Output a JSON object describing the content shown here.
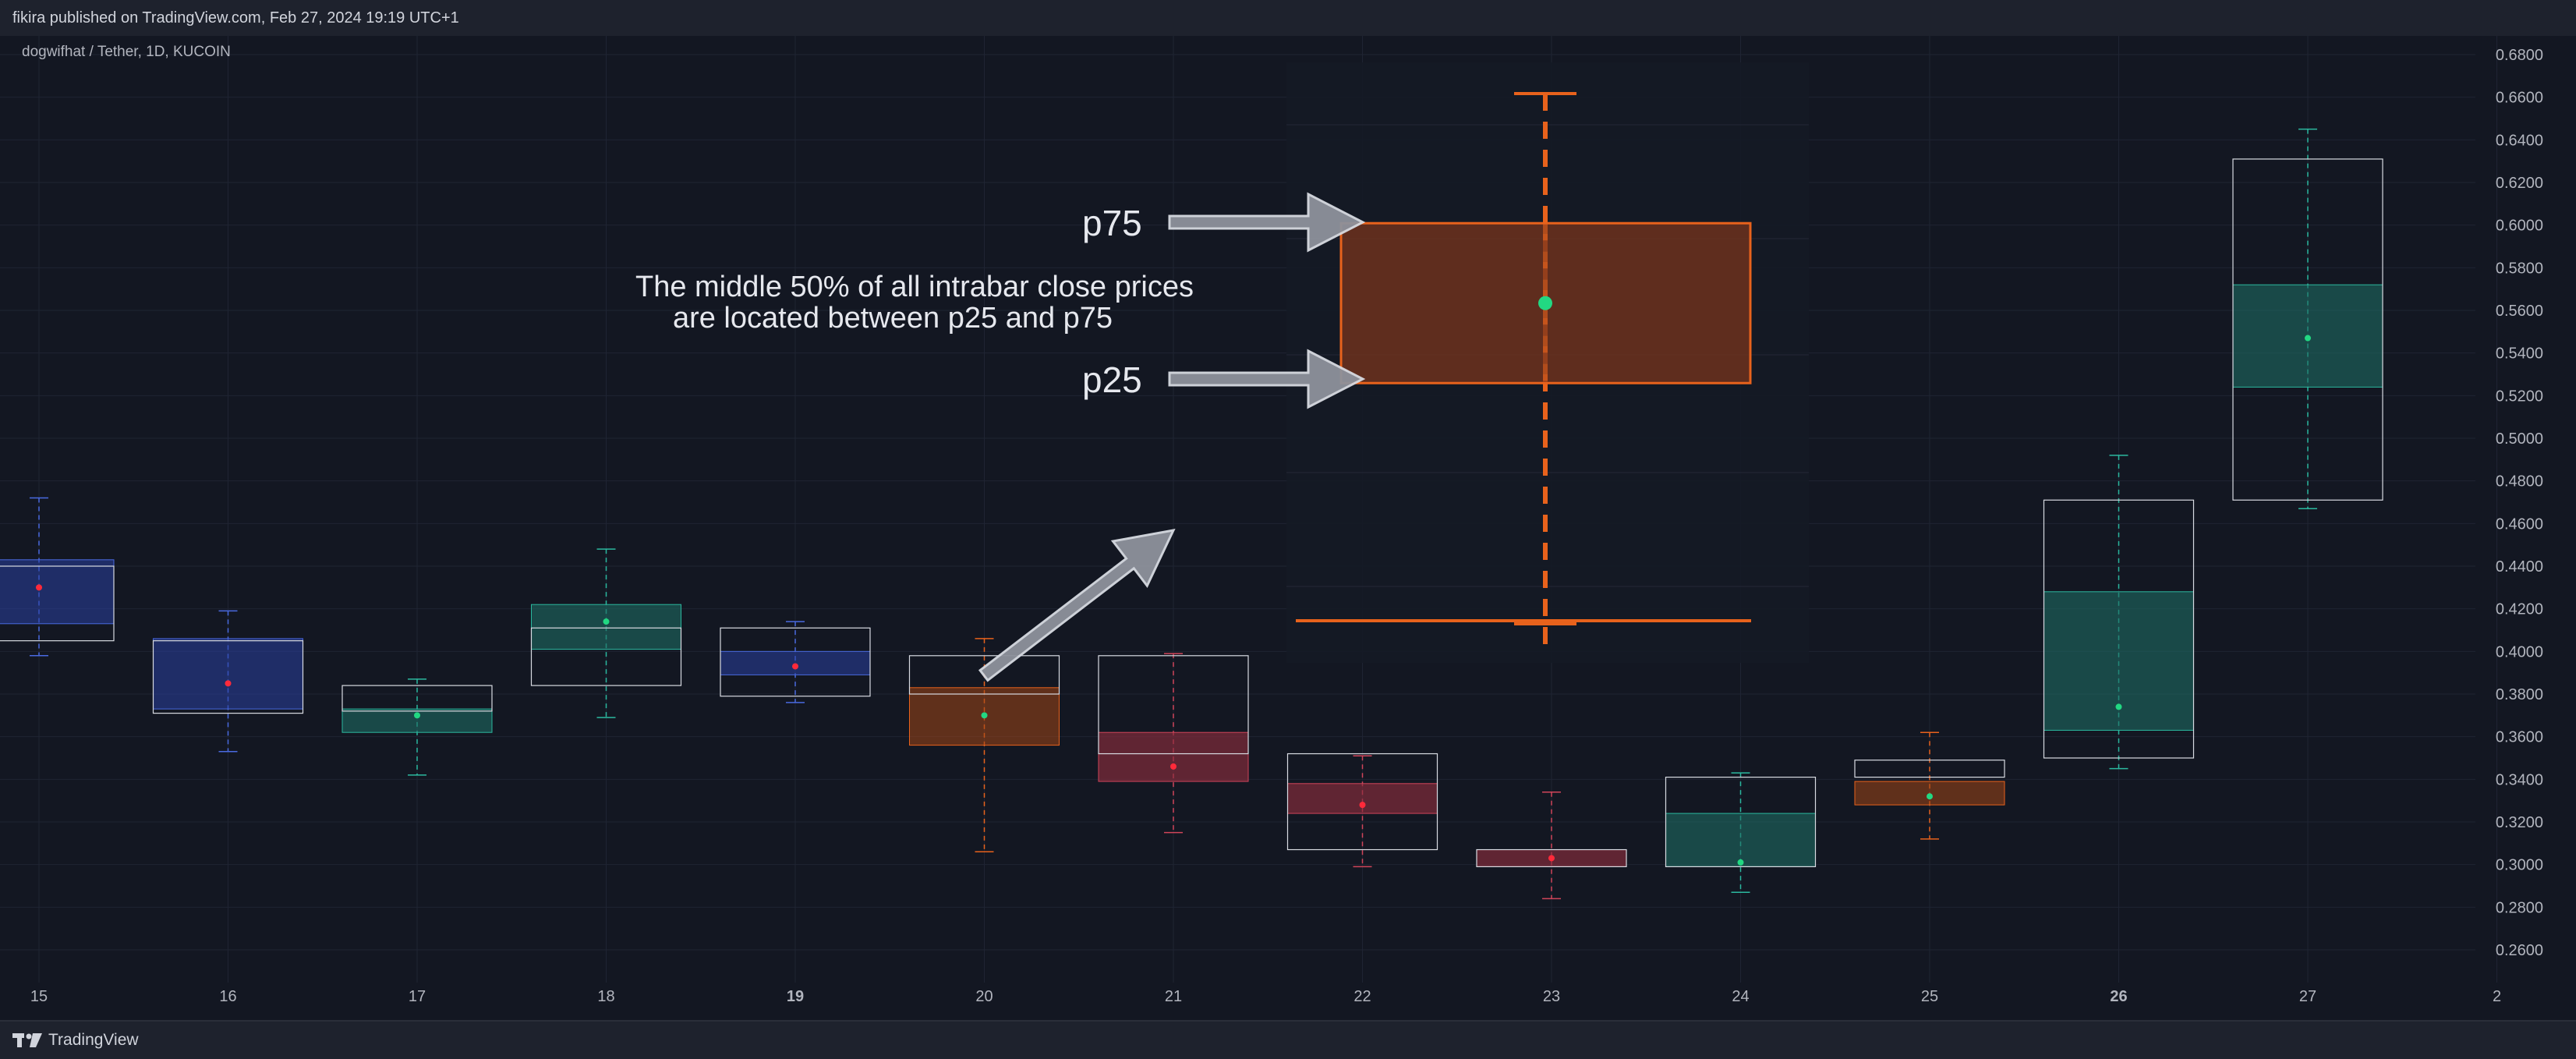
{
  "header": {
    "published": "fikira published on TradingView.com, Feb 27, 2024 19:19 UTC+1"
  },
  "footer": {
    "brand": "TradingView"
  },
  "colors": {
    "background": "#131722",
    "grid": "#1f2433",
    "blue": "#2a3fa0",
    "teal": "#1e6b63",
    "orange": "#e8621c",
    "red": "#8a2d3e",
    "white": "#d8dbe2",
    "green_dot": "#22d882",
    "red_dot": "#ff2a3a"
  },
  "chart_data": {
    "type": "box",
    "symbol": "dogwifhat / Tether, 1D, KUCOIN",
    "x_ticks": [
      "15",
      "16",
      "17",
      "18",
      "19",
      "20",
      "21",
      "22",
      "23",
      "24",
      "25",
      "26",
      "27",
      "2"
    ],
    "x_ticks_bold": [
      "19",
      "26"
    ],
    "y_ticks": [
      "0.6800",
      "0.6600",
      "0.6400",
      "0.6200",
      "0.6000",
      "0.5800",
      "0.5600",
      "0.5400",
      "0.5200",
      "0.5000",
      "0.4800",
      "0.4600",
      "0.4400",
      "0.4200",
      "0.4000",
      "0.3800",
      "0.3600",
      "0.3400",
      "0.3200",
      "0.3000",
      "0.2800",
      "0.2600"
    ],
    "y_range": [
      0.25,
      0.685
    ],
    "bars": [
      {
        "day": "15",
        "open": 0.405,
        "close": 0.44,
        "p25": 0.413,
        "p75": 0.443,
        "wick_low": 0.398,
        "wick_high": 0.472,
        "median": 0.43,
        "whisker": "blue",
        "fill": "blue",
        "dot": "red"
      },
      {
        "day": "16",
        "open": 0.371,
        "close": 0.405,
        "p25": 0.373,
        "p75": 0.406,
        "wick_low": 0.353,
        "wick_high": 0.419,
        "median": 0.385,
        "whisker": "blue",
        "fill": "blue",
        "dot": "red"
      },
      {
        "day": "17",
        "open": 0.372,
        "close": 0.384,
        "p25": 0.362,
        "p75": 0.373,
        "wick_low": 0.342,
        "wick_high": 0.387,
        "median": 0.37,
        "whisker": "teal",
        "fill": "teal",
        "dot": "green"
      },
      {
        "day": "18",
        "open": 0.384,
        "close": 0.411,
        "p25": 0.401,
        "p75": 0.422,
        "wick_low": 0.369,
        "wick_high": 0.448,
        "median": 0.414,
        "whisker": "teal",
        "fill": "teal",
        "dot": "green"
      },
      {
        "day": "19",
        "open": 0.379,
        "close": 0.411,
        "p25": 0.389,
        "p75": 0.4,
        "wick_low": 0.376,
        "wick_high": 0.414,
        "median": 0.393,
        "whisker": "blue",
        "fill": "blue",
        "dot": "red"
      },
      {
        "day": "20",
        "open": 0.38,
        "close": 0.398,
        "p25": 0.356,
        "p75": 0.383,
        "wick_low": 0.306,
        "wick_high": 0.406,
        "median": 0.37,
        "whisker": "orange",
        "fill": "orange",
        "dot": "green"
      },
      {
        "day": "21",
        "open": 0.352,
        "close": 0.398,
        "p25": 0.339,
        "p75": 0.362,
        "wick_low": 0.315,
        "wick_high": 0.399,
        "median": 0.346,
        "whisker": "red",
        "fill": "red",
        "dot": "red"
      },
      {
        "day": "22",
        "open": 0.307,
        "close": 0.352,
        "p25": 0.324,
        "p75": 0.338,
        "wick_low": 0.299,
        "wick_high": 0.351,
        "median": 0.328,
        "whisker": "red",
        "fill": "red",
        "dot": "red"
      },
      {
        "day": "23",
        "open": 0.299,
        "close": 0.307,
        "p25": 0.299,
        "p75": 0.307,
        "wick_low": 0.284,
        "wick_high": 0.334,
        "median": 0.303,
        "whisker": "red",
        "fill": "red",
        "dot": "red"
      },
      {
        "day": "24",
        "open": 0.299,
        "close": 0.341,
        "p25": 0.299,
        "p75": 0.324,
        "wick_low": 0.287,
        "wick_high": 0.343,
        "median": 0.301,
        "whisker": "teal",
        "fill": "teal",
        "dot": "green"
      },
      {
        "day": "25",
        "open": 0.341,
        "close": 0.349,
        "p25": 0.328,
        "p75": 0.339,
        "wick_low": 0.312,
        "wick_high": 0.362,
        "median": 0.332,
        "whisker": "orange",
        "fill": "orange",
        "dot": "green"
      },
      {
        "day": "26",
        "open": 0.35,
        "close": 0.471,
        "p25": 0.363,
        "p75": 0.428,
        "wick_low": 0.345,
        "wick_high": 0.492,
        "median": 0.374,
        "whisker": "teal",
        "fill": "teal",
        "dot": "green"
      },
      {
        "day": "27",
        "open": 0.471,
        "close": 0.631,
        "p25": 0.524,
        "p75": 0.572,
        "wick_low": 0.467,
        "wick_high": 0.645,
        "median": 0.547,
        "whisker": "teal",
        "fill": "teal",
        "dot": "green"
      }
    ],
    "zoom_inset": {
      "p25": 0.527,
      "p75": 0.601,
      "mid": 0.564,
      "wick_high": 0.661,
      "wick_low": 0.417,
      "color": "orange"
    },
    "annotations": {
      "p75_label": "p75",
      "p25_label": "p25",
      "description_line1": "The middle 50% of all intrabar close prices",
      "description_line2": "are located between p25 and p75"
    }
  }
}
